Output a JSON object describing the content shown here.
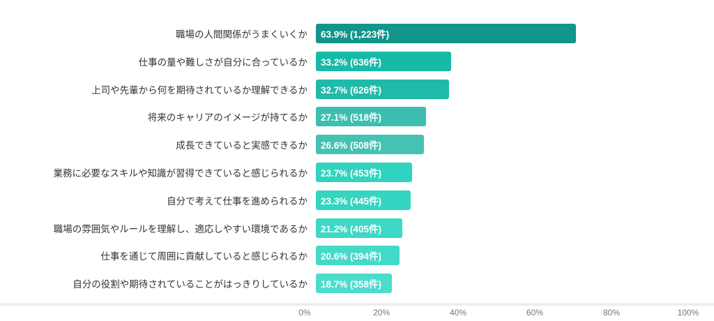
{
  "chart_data": {
    "type": "bar",
    "orientation": "horizontal",
    "categories": [
      "職場の人間関係がうまくいくか",
      "仕事の量や難しさが自分に合っているか",
      "上司や先輩から何を期待されているか理解できるか",
      "将来のキャリアのイメージが持てるか",
      "成長できていると実感できるか",
      "業務に必要なスキルや知識が習得できていると感じられるか",
      "自分で考えて仕事を進められるか",
      "職場の雰囲気やルールを理解し、適応しやすい環境であるか",
      "仕事を通じて周囲に貢献していると感じられるか",
      "自分の役割や期待されていることがはっきりしているか"
    ],
    "values": [
      63.9,
      33.2,
      32.7,
      27.1,
      26.6,
      23.7,
      23.3,
      21.2,
      20.6,
      18.7
    ],
    "data_labels": [
      "63.9% (1,223件)",
      "33.2% (636件)",
      "32.7% (626件)",
      "27.1% (518件)",
      "26.6% (508件)",
      "23.7% (453件)",
      "23.3% (445件)",
      "21.2% (405件)",
      "20.6% (394件)",
      "18.7% (358件)"
    ],
    "colors": [
      "#12958a",
      "#17b9a7",
      "#1fbaa9",
      "#3cbfb0",
      "#45c2b3",
      "#30d3bf",
      "#34d5c1",
      "#3ed8c6",
      "#44dac8",
      "#4ddccb"
    ],
    "xlim": [
      0,
      100
    ],
    "x_ticks": [
      "0%",
      "20%",
      "40%",
      "60%",
      "80%",
      "100%"
    ],
    "title": "",
    "xlabel": "",
    "ylabel": "",
    "grid": false
  }
}
